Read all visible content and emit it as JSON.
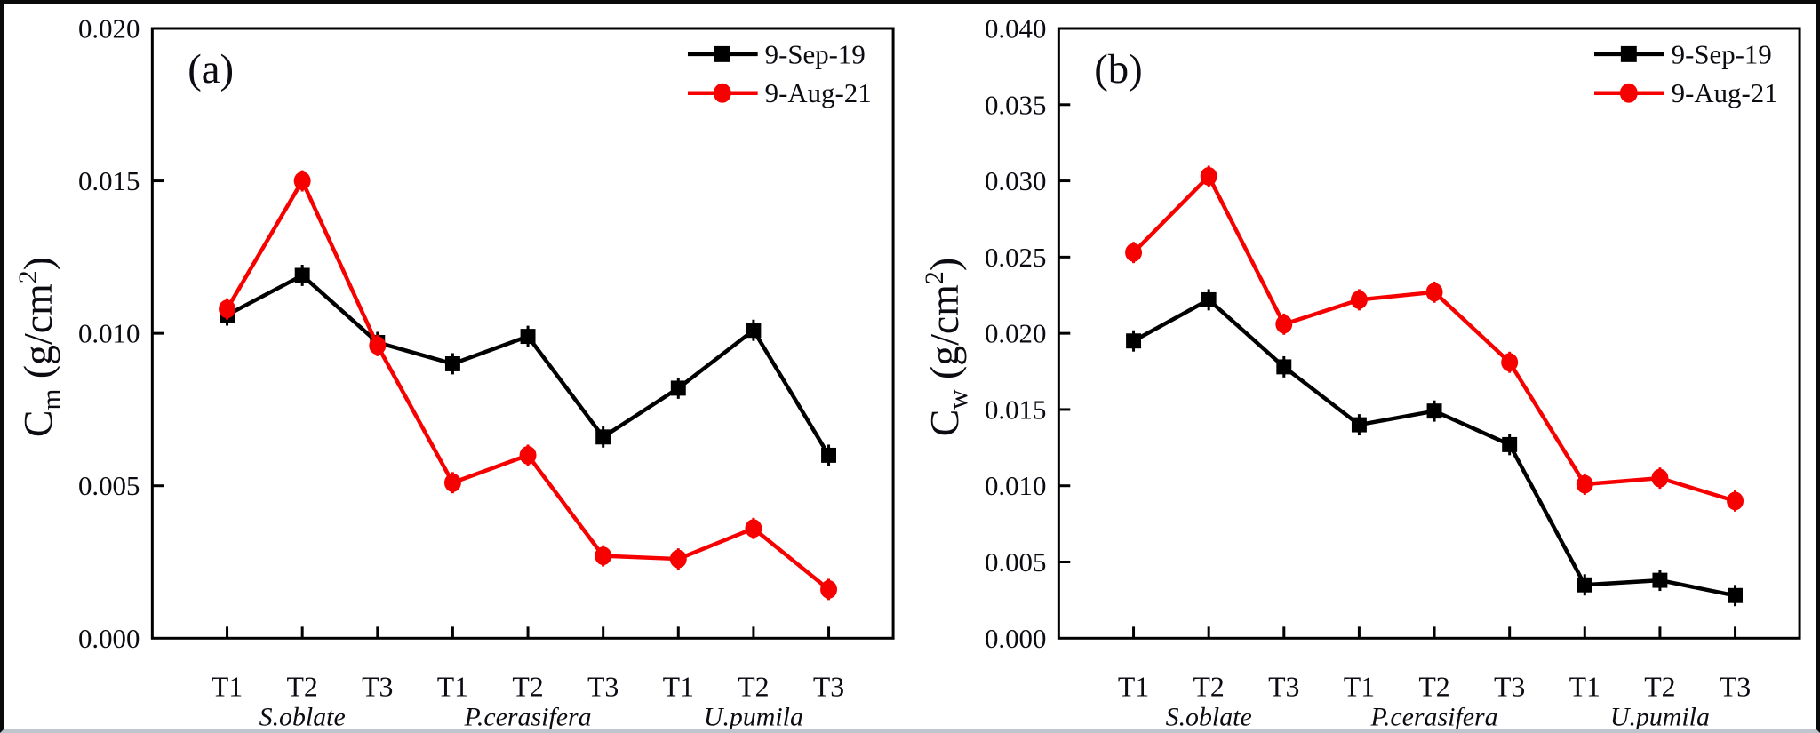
{
  "figure": {
    "background": "#ffffff",
    "frame_color": "#0a0a0a",
    "accent_red": "#f70000",
    "accent_black": "#000000"
  },
  "chart_data": [
    {
      "panel_label": "(a)",
      "type": "line",
      "title": "",
      "ylabel": {
        "base": "C",
        "subscript": "m",
        "unit_prefix": " (g/cm",
        "unit_superscript": "2",
        "unit_suffix": ")"
      },
      "ylim": [
        0,
        0.02
      ],
      "ytick_labels": [
        "0.000",
        "0.005",
        "0.010",
        "0.015",
        "0.020"
      ],
      "grid": false,
      "legend_position": "top-right",
      "categories": [
        "T1",
        "T2",
        "T3",
        "T1",
        "T2",
        "T3",
        "T1",
        "T2",
        "T3"
      ],
      "groups": [
        {
          "label": "S.oblate",
          "center_index": 1
        },
        {
          "label": "P.cerasifera",
          "center_index": 4
        },
        {
          "label": "U.pumila",
          "center_index": 7
        }
      ],
      "series": [
        {
          "name": "9-Sep-19",
          "color": "#000000",
          "marker": "square",
          "values": [
            0.0106,
            0.0119,
            0.0097,
            0.009,
            0.0099,
            0.0066,
            0.0082,
            0.0101,
            0.006
          ]
        },
        {
          "name": "9-Aug-21",
          "color": "#f70000",
          "marker": "circle",
          "values": [
            0.0108,
            0.015,
            0.0096,
            0.0051,
            0.006,
            0.0027,
            0.0026,
            0.0036,
            0.0016
          ]
        }
      ]
    },
    {
      "panel_label": "(b)",
      "type": "line",
      "title": "",
      "ylabel": {
        "base": "C",
        "subscript": "w",
        "unit_prefix": " (g/cm",
        "unit_superscript": "2",
        "unit_suffix": ")"
      },
      "ylim": [
        0,
        0.04
      ],
      "ytick_labels": [
        "0.000",
        "0.005",
        "0.010",
        "0.015",
        "0.020",
        "0.025",
        "0.030",
        "0.035",
        "0.040"
      ],
      "grid": false,
      "legend_position": "top-right",
      "categories": [
        "T1",
        "T2",
        "T3",
        "T1",
        "T2",
        "T3",
        "T1",
        "T2",
        "T3"
      ],
      "groups": [
        {
          "label": "S.oblate",
          "center_index": 1
        },
        {
          "label": "P.cerasifera",
          "center_index": 4
        },
        {
          "label": "U.pumila",
          "center_index": 7
        }
      ],
      "series": [
        {
          "name": "9-Sep-19",
          "color": "#000000",
          "marker": "square",
          "values": [
            0.0195,
            0.0222,
            0.0178,
            0.014,
            0.0149,
            0.0127,
            0.0035,
            0.0038,
            0.0028
          ]
        },
        {
          "name": "9-Aug-21",
          "color": "#f70000",
          "marker": "circle",
          "values": [
            0.0253,
            0.0303,
            0.0206,
            0.0222,
            0.0227,
            0.0181,
            0.0101,
            0.0105,
            0.009
          ]
        }
      ]
    }
  ]
}
